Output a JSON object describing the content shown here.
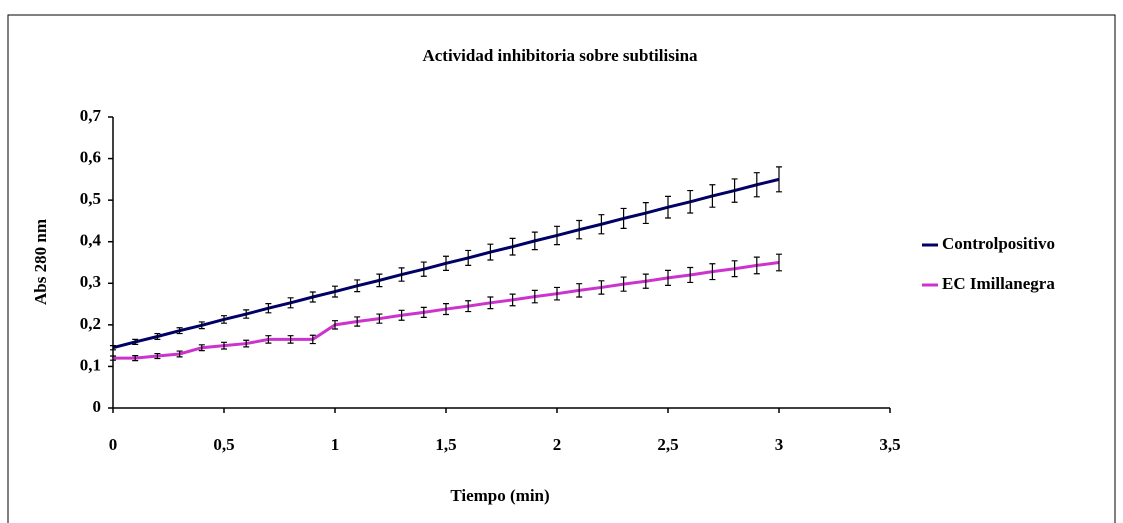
{
  "chart_data": {
    "type": "line",
    "title": "Actividad inhibitoria sobre subtilisina",
    "x_label": "Tiempo (min)",
    "y_label": "Abs 280 nm",
    "x": [
      0,
      0.1,
      0.2,
      0.3,
      0.4,
      0.5,
      0.6,
      0.7,
      0.8,
      0.9,
      1.0,
      1.1,
      1.2,
      1.3,
      1.4,
      1.5,
      1.6,
      1.7,
      1.8,
      1.9,
      2.0,
      2.1,
      2.2,
      2.3,
      2.4,
      2.5,
      2.6,
      2.7,
      2.8,
      2.9,
      3.0
    ],
    "series": [
      {
        "name": "Controlpositivo",
        "color": "#000066",
        "values": [
          0.145,
          0.159,
          0.172,
          0.186,
          0.199,
          0.213,
          0.226,
          0.24,
          0.253,
          0.267,
          0.28,
          0.294,
          0.307,
          0.321,
          0.334,
          0.348,
          0.361,
          0.375,
          0.388,
          0.402,
          0.415,
          0.429,
          0.442,
          0.456,
          0.469,
          0.483,
          0.496,
          0.51,
          0.523,
          0.537,
          0.55
        ],
        "errors": [
          0.005,
          0.006,
          0.007,
          0.007,
          0.008,
          0.009,
          0.01,
          0.011,
          0.012,
          0.012,
          0.013,
          0.014,
          0.015,
          0.016,
          0.017,
          0.017,
          0.018,
          0.019,
          0.02,
          0.021,
          0.022,
          0.022,
          0.023,
          0.024,
          0.025,
          0.026,
          0.027,
          0.027,
          0.028,
          0.029,
          0.03
        ]
      },
      {
        "name": "EC Imillanegra",
        "color": "#cc33cc",
        "values": [
          0.12,
          0.12,
          0.125,
          0.13,
          0.145,
          0.15,
          0.155,
          0.165,
          0.165,
          0.165,
          0.2,
          0.208,
          0.215,
          0.223,
          0.23,
          0.238,
          0.245,
          0.253,
          0.26,
          0.268,
          0.275,
          0.283,
          0.29,
          0.298,
          0.305,
          0.313,
          0.32,
          0.328,
          0.335,
          0.343,
          0.35
        ],
        "errors": [
          0.005,
          0.006,
          0.006,
          0.007,
          0.007,
          0.008,
          0.008,
          0.009,
          0.009,
          0.01,
          0.01,
          0.011,
          0.011,
          0.012,
          0.012,
          0.013,
          0.013,
          0.014,
          0.014,
          0.015,
          0.015,
          0.016,
          0.016,
          0.017,
          0.017,
          0.018,
          0.018,
          0.019,
          0.019,
          0.02,
          0.02
        ]
      }
    ],
    "xlim": [
      0,
      3.5
    ],
    "xticks": [
      0,
      {
        "value": 0.5,
        "label": "0,5"
      },
      1,
      {
        "value": 1.5,
        "label": "1,5"
      },
      2,
      {
        "value": 2.5,
        "label": "2,5"
      },
      3,
      {
        "value": 3.5,
        "label": "3,5"
      }
    ],
    "ylim": [
      0,
      0.7
    ],
    "yticks": [
      0,
      {
        "value": 0.1,
        "label": "0,1"
      },
      {
        "value": 0.2,
        "label": "0,2"
      },
      {
        "value": 0.3,
        "label": "0,3"
      },
      {
        "value": 0.4,
        "label": "0,4"
      },
      {
        "value": 0.5,
        "label": "0,5"
      },
      {
        "value": 0.6,
        "label": "0,6"
      },
      {
        "value": 0.7,
        "label": "0,7"
      }
    ],
    "legend": "right"
  }
}
